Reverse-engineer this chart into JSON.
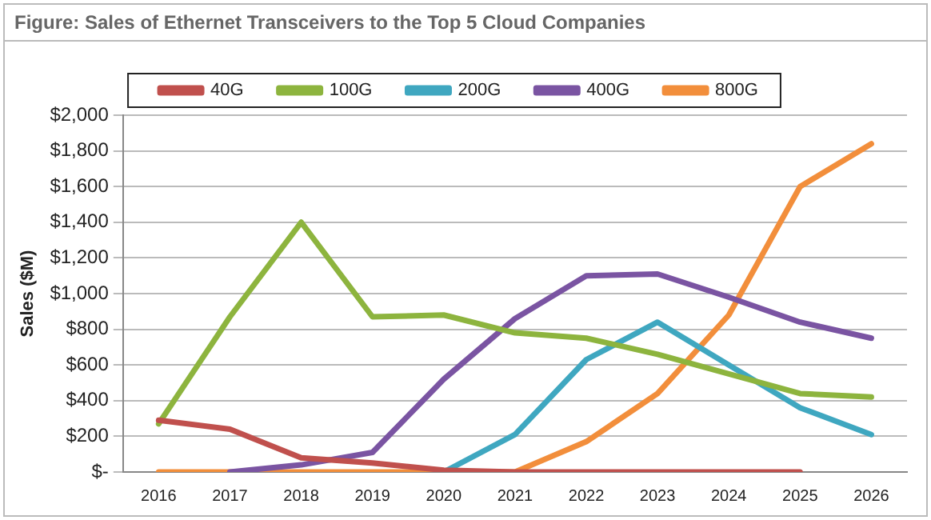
{
  "chart_data": {
    "type": "line",
    "title": "Figure: Sales of Ethernet Transceivers to the Top 5 Cloud Companies",
    "ylabel": "Sales ($M)",
    "categories": [
      "2016",
      "2017",
      "2018",
      "2019",
      "2020",
      "2021",
      "2022",
      "2023",
      "2024",
      "2025",
      "2026"
    ],
    "series": [
      {
        "name": "40G",
        "color": "#c0504d",
        "values": [
          290,
          240,
          80,
          50,
          10,
          0,
          0,
          0,
          0,
          0,
          null
        ]
      },
      {
        "name": "100G",
        "color": "#8db43e",
        "values": [
          270,
          870,
          1400,
          870,
          880,
          780,
          750,
          660,
          550,
          440,
          420
        ]
      },
      {
        "name": "200G",
        "color": "#3fa7c0",
        "values": [
          null,
          null,
          null,
          null,
          0,
          210,
          630,
          840,
          600,
          360,
          210
        ]
      },
      {
        "name": "400G",
        "color": "#7a54a2",
        "values": [
          null,
          0,
          40,
          110,
          520,
          860,
          1100,
          1110,
          980,
          840,
          750
        ]
      },
      {
        "name": "800G",
        "color": "#f28e3b",
        "values": [
          0,
          0,
          0,
          0,
          0,
          0,
          170,
          440,
          880,
          1600,
          1840
        ]
      }
    ],
    "ylim": [
      0,
      2000
    ],
    "yticks": [
      {
        "value": 0,
        "label": "$-"
      },
      {
        "value": 200,
        "label": "$200"
      },
      {
        "value": 400,
        "label": "$400"
      },
      {
        "value": 600,
        "label": "$600"
      },
      {
        "value": 800,
        "label": "$800"
      },
      {
        "value": 1000,
        "label": "$1,000"
      },
      {
        "value": 1200,
        "label": "$1,200"
      },
      {
        "value": 1400,
        "label": "$1,400"
      },
      {
        "value": 1600,
        "label": "$1,600"
      },
      {
        "value": 1800,
        "label": "$1,800"
      },
      {
        "value": 2000,
        "label": "$2,000"
      }
    ],
    "grid": "y",
    "legend": "top",
    "marker": "none",
    "line_style": "solid"
  }
}
